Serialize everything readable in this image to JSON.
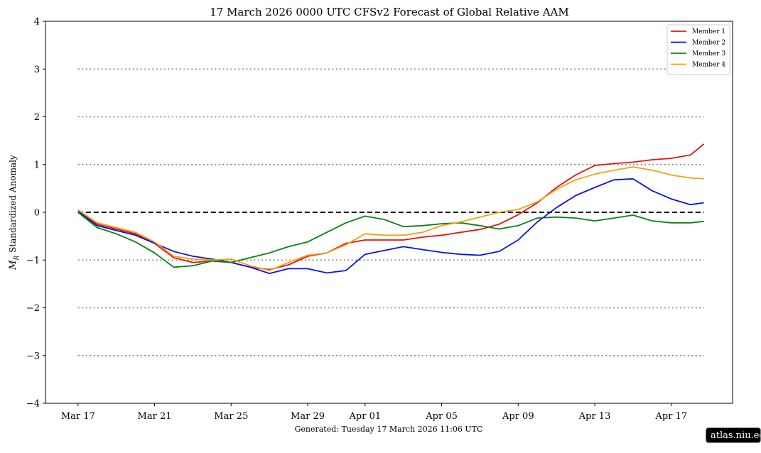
{
  "chart_data": {
    "type": "line",
    "title": "17  March  2026 0000 UTC   CFSv2 Forecast of Global Relative AAM",
    "ylabel": "M_R Standardized Anomaly",
    "ylabel_main": "M",
    "ylabel_sub": "R",
    "ylabel_rest": " Standardized Anomaly",
    "xlabel": "",
    "ylim": [
      -4,
      4
    ],
    "yticks": [
      -4,
      -3,
      -2,
      -1,
      0,
      1,
      2,
      3,
      4
    ],
    "ytick_labels": [
      "−4",
      "−3",
      "−2",
      "−1",
      "0",
      "1",
      "2",
      "3",
      "4"
    ],
    "x_start": "Mar 17",
    "x_days_range": [
      -1.7,
      34.2
    ],
    "xticks": [
      0,
      4,
      8,
      12,
      15,
      19,
      23,
      27,
      31
    ],
    "xtick_labels": [
      "Mar 17",
      "Mar 21",
      "Mar 25",
      "Mar 29",
      "Apr 01",
      "Apr 05",
      "Apr 09",
      "Apr 13",
      "Apr 17"
    ],
    "grid_lines": [
      3,
      2,
      1,
      -1,
      -2,
      -3
    ],
    "zero_line": 0,
    "legend_position": "top-right",
    "series": [
      {
        "name": "Member 1",
        "color": "#e8120c",
        "x": [
          0,
          1,
          2,
          3,
          4,
          5,
          6,
          7,
          8,
          9,
          10,
          11,
          12,
          13,
          14,
          15,
          16,
          17,
          18,
          19,
          20,
          21,
          22,
          23,
          24,
          25,
          26,
          27,
          28,
          29,
          30,
          31,
          32,
          32.7
        ],
        "y": [
          0.02,
          -0.25,
          -0.35,
          -0.45,
          -0.65,
          -0.95,
          -1.05,
          -1.02,
          -1.05,
          -1.15,
          -1.2,
          -1.1,
          -0.92,
          -0.85,
          -0.65,
          -0.58,
          -0.58,
          -0.58,
          -0.52,
          -0.48,
          -0.42,
          -0.36,
          -0.25,
          -0.05,
          0.2,
          0.52,
          0.78,
          0.98,
          1.02,
          1.05,
          1.1,
          1.13,
          1.2,
          1.43
        ]
      },
      {
        "name": "Member 2",
        "color": "#0a12e8",
        "x": [
          0,
          1,
          2,
          3,
          4,
          5,
          6,
          7,
          8,
          9,
          10,
          11,
          12,
          13,
          14,
          15,
          16,
          17,
          18,
          19,
          20,
          21,
          22,
          23,
          24,
          25,
          26,
          27,
          28,
          29,
          30,
          31,
          32,
          32.7
        ],
        "y": [
          0.02,
          -0.28,
          -0.38,
          -0.48,
          -0.65,
          -0.82,
          -0.92,
          -0.98,
          -1.05,
          -1.15,
          -1.28,
          -1.18,
          -1.18,
          -1.27,
          -1.22,
          -0.88,
          -0.8,
          -0.72,
          -0.78,
          -0.84,
          -0.88,
          -0.9,
          -0.82,
          -0.58,
          -0.2,
          0.1,
          0.35,
          0.52,
          0.68,
          0.7,
          0.45,
          0.28,
          0.16,
          0.2
        ]
      },
      {
        "name": "Member 3",
        "color": "#0b8012",
        "x": [
          0,
          1,
          2,
          3,
          4,
          5,
          6,
          7,
          8,
          9,
          10,
          11,
          12,
          13,
          14,
          15,
          16,
          17,
          18,
          19,
          20,
          21,
          22,
          23,
          24,
          25,
          26,
          27,
          28,
          29,
          30,
          31,
          32,
          32.7
        ],
        "y": [
          0.0,
          -0.32,
          -0.45,
          -0.62,
          -0.85,
          -1.15,
          -1.12,
          -1.02,
          -1.05,
          -0.95,
          -0.85,
          -0.72,
          -0.62,
          -0.42,
          -0.22,
          -0.08,
          -0.15,
          -0.3,
          -0.28,
          -0.24,
          -0.22,
          -0.28,
          -0.35,
          -0.28,
          -0.12,
          -0.1,
          -0.12,
          -0.18,
          -0.12,
          -0.06,
          -0.18,
          -0.22,
          -0.22,
          -0.19
        ]
      },
      {
        "name": "Member 4",
        "color": "#f5a00f",
        "x": [
          0,
          1,
          2,
          3,
          4,
          5,
          6,
          7,
          8,
          9,
          10,
          11,
          12,
          13,
          14,
          15,
          16,
          17,
          18,
          19,
          20,
          21,
          22,
          23,
          24,
          25,
          26,
          27,
          28,
          29,
          30,
          31,
          32,
          32.7
        ],
        "y": [
          0.05,
          -0.22,
          -0.32,
          -0.42,
          -0.62,
          -0.92,
          -0.98,
          -1.0,
          -0.98,
          -1.12,
          -1.22,
          -1.05,
          -0.9,
          -0.85,
          -0.68,
          -0.45,
          -0.48,
          -0.48,
          -0.42,
          -0.28,
          -0.2,
          -0.1,
          0.0,
          0.06,
          0.22,
          0.48,
          0.68,
          0.8,
          0.88,
          0.95,
          0.88,
          0.78,
          0.72,
          0.7
        ]
      }
    ]
  },
  "footer": {
    "generated": "Generated: Tuesday  17  March  2026  11:06 UTC"
  },
  "badge": {
    "text": "atlas.niu.edu"
  }
}
